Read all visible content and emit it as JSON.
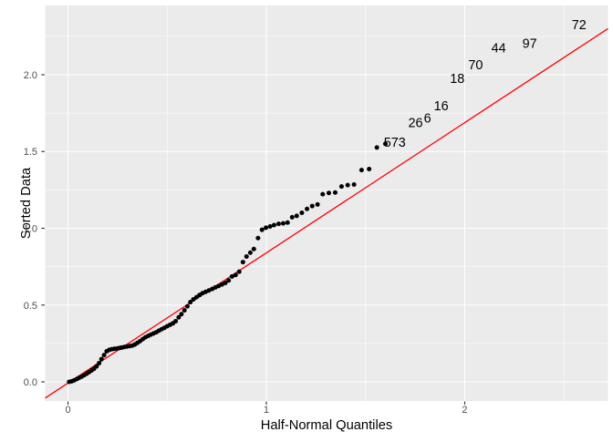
{
  "chart_data": {
    "type": "scatter",
    "title": "",
    "xlabel": "Half-Normal Quantiles",
    "ylabel": "Sorted Data",
    "xlim": [
      -0.115,
      2.722
    ],
    "ylim": [
      -0.1246,
      2.451
    ],
    "x_major_ticks": [
      0,
      1,
      2
    ],
    "x_tick_labels": [
      "0",
      "1",
      "2"
    ],
    "x_minor_gridlines": [
      0.5,
      1.5,
      2.5
    ],
    "y_major_ticks": [
      0.0,
      0.5,
      1.0,
      1.5,
      2.0
    ],
    "y_tick_labels": [
      "0.0",
      "0.5",
      "1.0",
      "1.5",
      "2.0"
    ],
    "y_minor_gridlines": [
      0.25,
      0.75,
      1.25,
      1.75,
      2.25
    ],
    "grid": true,
    "legend": "none",
    "reference_line": {
      "intercept": -0.008,
      "slope": 0.848,
      "color": "#FF0000",
      "width": 1.3
    },
    "points": [
      [
        0.006,
        0.0
      ],
      [
        0.019,
        0.004
      ],
      [
        0.031,
        0.01
      ],
      [
        0.044,
        0.018
      ],
      [
        0.056,
        0.026
      ],
      [
        0.069,
        0.034
      ],
      [
        0.081,
        0.043
      ],
      [
        0.094,
        0.053
      ],
      [
        0.106,
        0.063
      ],
      [
        0.119,
        0.074
      ],
      [
        0.131,
        0.085
      ],
      [
        0.144,
        0.101
      ],
      [
        0.157,
        0.122
      ],
      [
        0.169,
        0.148
      ],
      [
        0.182,
        0.174
      ],
      [
        0.195,
        0.199
      ],
      [
        0.207,
        0.208
      ],
      [
        0.22,
        0.212
      ],
      [
        0.233,
        0.215
      ],
      [
        0.246,
        0.217
      ],
      [
        0.259,
        0.22
      ],
      [
        0.271,
        0.223
      ],
      [
        0.284,
        0.227
      ],
      [
        0.298,
        0.23
      ],
      [
        0.311,
        0.233
      ],
      [
        0.324,
        0.236
      ],
      [
        0.337,
        0.243
      ],
      [
        0.35,
        0.254
      ],
      [
        0.363,
        0.265
      ],
      [
        0.377,
        0.278
      ],
      [
        0.39,
        0.29
      ],
      [
        0.404,
        0.299
      ],
      [
        0.417,
        0.307
      ],
      [
        0.431,
        0.315
      ],
      [
        0.445,
        0.323
      ],
      [
        0.458,
        0.333
      ],
      [
        0.472,
        0.343
      ],
      [
        0.486,
        0.352
      ],
      [
        0.5,
        0.362
      ],
      [
        0.515,
        0.372
      ],
      [
        0.529,
        0.381
      ],
      [
        0.543,
        0.395
      ],
      [
        0.558,
        0.42
      ],
      [
        0.572,
        0.441
      ],
      [
        0.587,
        0.466
      ],
      [
        0.602,
        0.492
      ],
      [
        0.617,
        0.519
      ],
      [
        0.632,
        0.537
      ],
      [
        0.648,
        0.551
      ],
      [
        0.663,
        0.565
      ],
      [
        0.678,
        0.577
      ],
      [
        0.694,
        0.586
      ],
      [
        0.71,
        0.595
      ],
      [
        0.727,
        0.605
      ],
      [
        0.743,
        0.615
      ],
      [
        0.759,
        0.624
      ],
      [
        0.776,
        0.634
      ],
      [
        0.793,
        0.644
      ],
      [
        0.81,
        0.66
      ],
      [
        0.827,
        0.686
      ],
      [
        0.845,
        0.696
      ],
      [
        0.863,
        0.717
      ],
      [
        0.882,
        0.78
      ],
      [
        0.9,
        0.816
      ],
      [
        0.919,
        0.841
      ],
      [
        0.937,
        0.865
      ],
      [
        0.958,
        0.936
      ],
      [
        0.978,
        0.99
      ],
      [
        0.998,
        1.004
      ],
      [
        1.019,
        1.012
      ],
      [
        1.039,
        1.021
      ],
      [
        1.062,
        1.029
      ],
      [
        1.085,
        1.032
      ],
      [
        1.107,
        1.037
      ],
      [
        1.13,
        1.072
      ],
      [
        1.153,
        1.081
      ],
      [
        1.179,
        1.101
      ],
      [
        1.205,
        1.126
      ],
      [
        1.231,
        1.145
      ],
      [
        1.258,
        1.155
      ],
      [
        1.284,
        1.222
      ],
      [
        1.315,
        1.23
      ],
      [
        1.347,
        1.233
      ],
      [
        1.379,
        1.272
      ],
      [
        1.41,
        1.281
      ],
      [
        1.442,
        1.285
      ],
      [
        1.48,
        1.379
      ],
      [
        1.518,
        1.386
      ],
      [
        1.557,
        1.526
      ],
      [
        1.6,
        1.55
      ]
    ],
    "point_style": {
      "color": "#000000",
      "radius": 2.5
    },
    "annotations": [
      {
        "text": "573",
        "x": 1.647,
        "y": 1.562
      },
      {
        "text": "26",
        "x": 1.752,
        "y": 1.69
      },
      {
        "text": "6",
        "x": 1.812,
        "y": 1.72
      },
      {
        "text": "16",
        "x": 1.881,
        "y": 1.799
      },
      {
        "text": "18",
        "x": 1.962,
        "y": 1.977
      },
      {
        "text": "70",
        "x": 2.055,
        "y": 2.066
      },
      {
        "text": "44",
        "x": 2.171,
        "y": 2.175
      },
      {
        "text": "97",
        "x": 2.327,
        "y": 2.206
      },
      {
        "text": "72",
        "x": 2.576,
        "y": 2.328
      }
    ],
    "colors": {
      "background": "#FFFFFF",
      "panel_bg": "#EBEBEB",
      "gridline": "#FFFFFF",
      "tick_mark": "#333333",
      "axis_text": "#4D4D4D",
      "axis_title": "#000000",
      "point": "#000000",
      "reference_line": "#FF0000"
    }
  }
}
